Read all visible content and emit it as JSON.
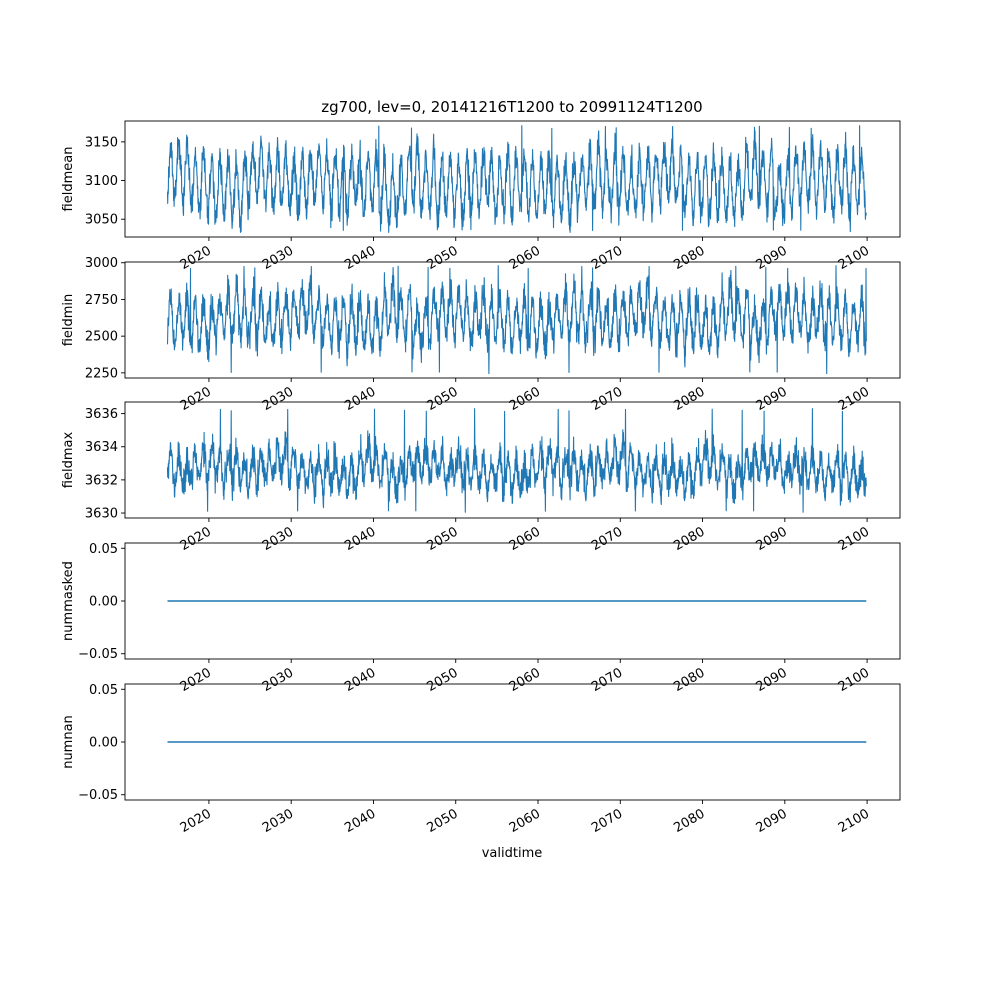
{
  "title": "zg700, lev=0, 20141216T1200 to 20991124T1200",
  "xlabel": "validtime",
  "series_color": "#1f77b4",
  "x_tick_labels": [
    "2020",
    "2030",
    "2040",
    "2050",
    "2060",
    "2070",
    "2080",
    "2090",
    "2100"
  ],
  "chart_data": [
    {
      "type": "line",
      "ylabel": "fieldmean",
      "x_range": [
        "2014-12-16T12:00",
        "2099-11-24T12:00"
      ],
      "xlim": [
        2009.8,
        2104.0
      ],
      "ylim": [
        3027,
        3177
      ],
      "yticks": [
        3050,
        3100,
        3150
      ],
      "ytick_labels": [
        "3050",
        "3100",
        "3150"
      ],
      "summary": {
        "mean": 3103,
        "min": 3033,
        "max": 3171,
        "seasonal_amplitude": 35
      },
      "grid": false
    },
    {
      "type": "line",
      "ylabel": "fieldmin",
      "x_range": [
        "2014-12-16T12:00",
        "2099-11-24T12:00"
      ],
      "xlim": [
        2009.8,
        2104.0
      ],
      "ylim": [
        2215,
        3005
      ],
      "yticks": [
        2250,
        2500,
        2750,
        3000
      ],
      "ytick_labels": [
        "2250",
        "2500",
        "2750",
        "3000"
      ],
      "summary": {
        "mean": 2650,
        "min": 2240,
        "max": 2980,
        "seasonal_amplitude": 150
      },
      "grid": false
    },
    {
      "type": "line",
      "ylabel": "fieldmax",
      "x_range": [
        "2014-12-16T12:00",
        "2099-11-24T12:00"
      ],
      "xlim": [
        2009.8,
        2104.0
      ],
      "ylim": [
        3629.7,
        3636.7
      ],
      "yticks": [
        3630,
        3632,
        3634,
        3636
      ],
      "ytick_labels": [
        "3630",
        "3632",
        "3634",
        "3636"
      ],
      "summary": {
        "mean": 3632.9,
        "min": 3630.0,
        "max": 3636.3,
        "seasonal_amplitude": 0.9
      },
      "grid": false
    },
    {
      "type": "line",
      "ylabel": "nummasked",
      "x_range": [
        "2014-12-16T12:00",
        "2099-11-24T12:00"
      ],
      "xlim": [
        2009.8,
        2104.0
      ],
      "ylim": [
        -0.055,
        0.055
      ],
      "yticks": [
        -0.05,
        0.0,
        0.05
      ],
      "ytick_labels": [
        "−0.05",
        "0.00",
        "0.05"
      ],
      "constant_value": 0.0,
      "grid": false
    },
    {
      "type": "line",
      "ylabel": "numnan",
      "x_range": [
        "2014-12-16T12:00",
        "2099-11-24T12:00"
      ],
      "xlim": [
        2009.8,
        2104.0
      ],
      "ylim": [
        -0.055,
        0.055
      ],
      "yticks": [
        -0.05,
        0.0,
        0.05
      ],
      "ytick_labels": [
        "−0.05",
        "0.00",
        "0.05"
      ],
      "constant_value": 0.0,
      "grid": false
    }
  ]
}
